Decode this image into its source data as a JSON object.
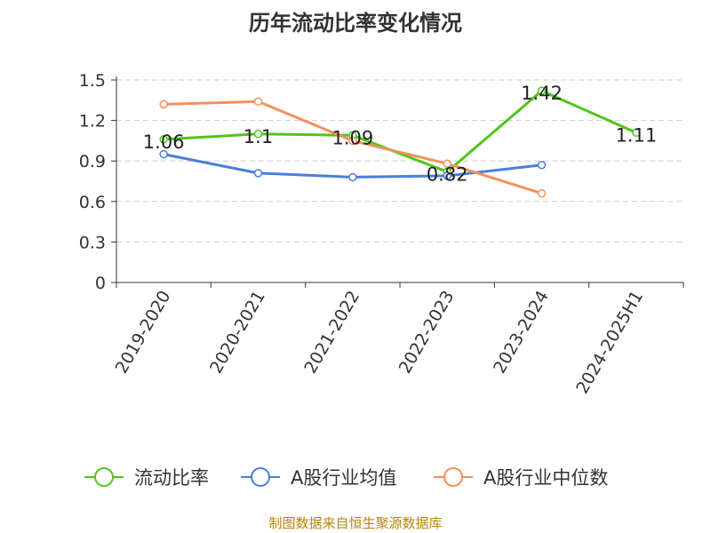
{
  "chart_data": {
    "type": "line",
    "title": "历年流动比率变化情况",
    "xlabel": "",
    "ylabel": "",
    "categories": [
      "2019-2020",
      "2020-2021",
      "2021-2022",
      "2022-2023",
      "2023-2024",
      "2024-2025H1"
    ],
    "ylim": [
      0,
      1.5
    ],
    "yticks": [
      "0",
      "0.3",
      "0.6",
      "0.9",
      "1.2",
      "1.5"
    ],
    "grid": true,
    "legend_position": "bottom",
    "series": [
      {
        "name": "流动比率",
        "color": "#52c41a",
        "values": [
          1.06,
          1.1,
          1.09,
          0.82,
          1.42,
          1.11
        ],
        "labels": [
          "1.06",
          "1.1",
          "1.09",
          "0.82",
          "1.42",
          "1.11"
        ]
      },
      {
        "name": "A股行业均值",
        "color": "#4a7fdc",
        "values": [
          0.95,
          0.81,
          0.78,
          0.79,
          0.87,
          null
        ]
      },
      {
        "name": "A股行业中位数",
        "color": "#f4905a",
        "values": [
          1.32,
          1.34,
          1.05,
          0.88,
          0.66,
          null
        ]
      }
    ]
  },
  "source": "制图数据来自恒生聚源数据库"
}
